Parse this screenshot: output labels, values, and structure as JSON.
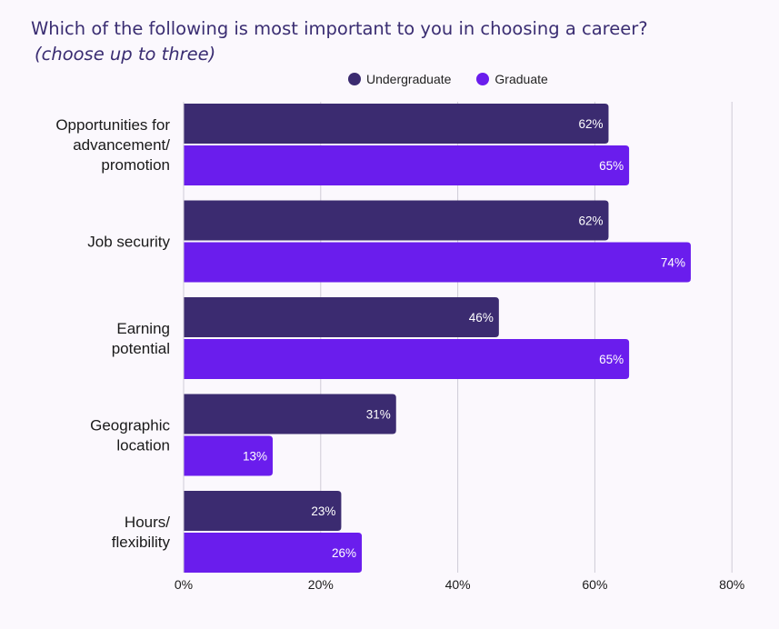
{
  "title": "Which of the following is most important to you in choosing a career?",
  "subtitle": "(choose up to three)",
  "colors": {
    "Undergraduate": "#3b2b70",
    "Graduate": "#6a1ded",
    "grid": "#cfcbd6",
    "background": "#fbf8fd"
  },
  "chart_data": {
    "type": "bar",
    "orientation": "horizontal",
    "categories": [
      [
        "Opportunities for",
        "advancement/",
        "promotion"
      ],
      [
        "Job security"
      ],
      [
        "Earning",
        "potential"
      ],
      [
        "Geographic",
        "location"
      ],
      [
        "Hours/",
        "flexibility"
      ]
    ],
    "series": [
      {
        "name": "Undergraduate",
        "values": [
          62,
          62,
          46,
          31,
          23
        ]
      },
      {
        "name": "Graduate",
        "values": [
          65,
          74,
          65,
          13,
          26
        ]
      }
    ],
    "value_suffix": "%",
    "xlim": [
      0,
      80
    ],
    "xticks": [
      0,
      20,
      40,
      60,
      80
    ],
    "xtick_labels": [
      "0%",
      "20%",
      "40%",
      "60%",
      "80%"
    ],
    "grid": true,
    "legend_position": "top"
  }
}
